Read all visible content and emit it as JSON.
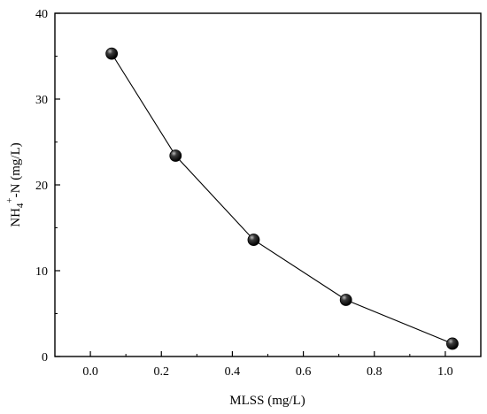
{
  "chart_data": {
    "type": "line",
    "x": [
      0.06,
      0.24,
      0.46,
      0.72,
      1.02
    ],
    "series": [
      {
        "values": [
          35.3,
          23.4,
          13.6,
          6.6,
          1.5
        ]
      }
    ],
    "xlabel": "MLSS (mg/L)",
    "ylabel": {
      "base": "NH",
      "sub": "4",
      "sup": "+",
      "rest": "-N (mg/L)"
    },
    "xlim": [
      -0.1,
      1.1
    ],
    "ylim": [
      0,
      40
    ],
    "xticks": [
      "0.0",
      "0.2",
      "0.4",
      "0.6",
      "0.8",
      "1.0"
    ],
    "yticks": [
      "0",
      "10",
      "20",
      "30",
      "40"
    ],
    "grid": false,
    "legend": "none",
    "colors": {
      "line": "#000000",
      "marker": "#000000"
    }
  }
}
